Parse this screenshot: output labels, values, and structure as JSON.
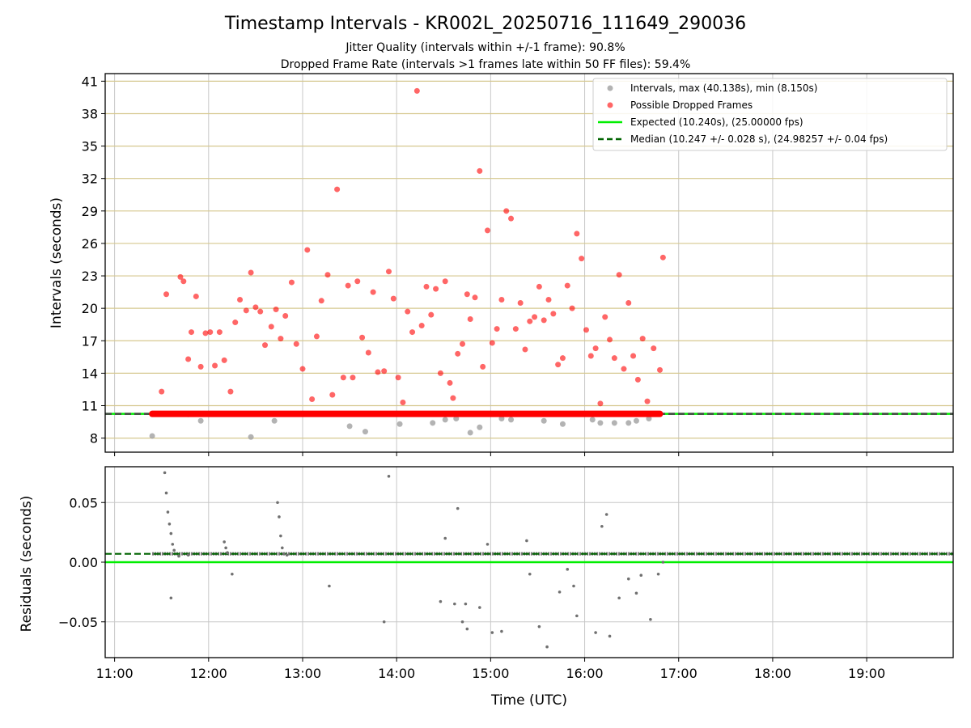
{
  "chart_data": [
    {
      "type": "scatter",
      "title": "Timestamp Intervals - KR002L_20250716_111649_290036",
      "subtitle_1": "Jitter Quality (intervals within +/-1 frame): 90.8%",
      "subtitle_2": "Dropped Frame Rate (intervals >1 frames late within 50 FF files): 59.4%",
      "xlabel": "",
      "ylabel": "Intervals (seconds)",
      "x_ticks": [
        "11:00",
        "12:00",
        "13:00",
        "14:00",
        "15:00",
        "16:00",
        "17:00",
        "18:00",
        "19:00"
      ],
      "y_ticks": [
        8,
        11,
        14,
        17,
        20,
        23,
        26,
        29,
        32,
        35,
        38,
        41
      ],
      "xlim_hours": [
        10.9,
        19.92
      ],
      "ylim": [
        6.7,
        41.7
      ],
      "grid": true,
      "legend_position": "top-right",
      "legend": {
        "intervals": "Intervals, max (40.138s), min (8.150s)",
        "dropped": "Possible Dropped Frames",
        "expected": "Expected (10.240s), (25.00000 fps)",
        "median": "Median (10.247 +/- 0.028 s), (24.98257 +/- 0.04 fps)"
      },
      "colors": {
        "intervals": "#a0a0a0",
        "dropped": "#ff0000",
        "expected": "#00ee00",
        "median": "#006400",
        "grid_h": "#d6c88f",
        "grid_v": "#c8c8c8"
      },
      "series": [
        {
          "name": "Possible Dropped Frames",
          "x": [
            "11:30",
            "11:33",
            "11:42",
            "11:44",
            "11:47",
            "11:49",
            "11:52",
            "11:55",
            "11:58",
            "12:01",
            "12:04",
            "12:07",
            "12:10",
            "12:14",
            "12:17",
            "12:20",
            "12:24",
            "12:27",
            "12:30",
            "12:33",
            "12:36",
            "12:40",
            "12:43",
            "12:46",
            "12:49",
            "12:53",
            "12:56",
            "13:00",
            "13:03",
            "13:06",
            "13:09",
            "13:12",
            "13:16",
            "13:19",
            "13:22",
            "13:26",
            "13:29",
            "13:32",
            "13:35",
            "13:38",
            "13:42",
            "13:45",
            "13:48",
            "13:52",
            "13:55",
            "13:58",
            "14:01",
            "14:04",
            "14:07",
            "14:10",
            "14:13",
            "14:16",
            "14:19",
            "14:22",
            "14:25",
            "14:28",
            "14:31",
            "14:34",
            "14:36",
            "14:39",
            "14:42",
            "14:45",
            "14:47",
            "14:50",
            "14:53",
            "14:55",
            "14:58",
            "15:01",
            "15:04",
            "15:07",
            "15:10",
            "15:13",
            "15:16",
            "15:19",
            "15:22",
            "15:25",
            "15:28",
            "15:31",
            "15:34",
            "15:37",
            "15:40",
            "15:43",
            "15:46",
            "15:49",
            "15:52",
            "15:55",
            "15:58",
            "16:01",
            "16:04",
            "16:07",
            "16:10",
            "16:13",
            "16:16",
            "16:19",
            "16:22",
            "16:25",
            "16:28",
            "16:31",
            "16:34",
            "16:37",
            "16:40",
            "16:44",
            "16:48",
            "16:50"
          ],
          "values": [
            12.3,
            21.3,
            22.9,
            22.5,
            15.3,
            17.8,
            21.1,
            14.6,
            17.7,
            17.8,
            14.7,
            17.8,
            15.2,
            12.3,
            18.7,
            20.8,
            19.8,
            23.3,
            20.1,
            19.7,
            16.6,
            18.3,
            19.9,
            17.2,
            19.3,
            22.4,
            16.7,
            14.4,
            25.4,
            11.6,
            17.4,
            20.7,
            23.1,
            12.0,
            31.0,
            13.6,
            22.1,
            13.6,
            22.5,
            17.3,
            15.9,
            21.5,
            14.1,
            14.2,
            23.4,
            20.9,
            13.6,
            11.3,
            19.7,
            17.8,
            40.1,
            18.4,
            22.0,
            19.4,
            21.8,
            14.0,
            22.5,
            13.1,
            11.7,
            15.8,
            16.7,
            21.3,
            19.0,
            21.0,
            32.7,
            14.6,
            27.2,
            16.8,
            18.1,
            20.8,
            29.0,
            28.3,
            18.1,
            20.5,
            16.2,
            18.8,
            19.2,
            22.0,
            18.9,
            20.8,
            19.5,
            14.8,
            15.4,
            22.1,
            20.0,
            26.9,
            24.6,
            18.0,
            15.6,
            16.3,
            11.2,
            19.2,
            17.1,
            15.4,
            23.1,
            14.4,
            20.5,
            15.6,
            13.4,
            17.2,
            11.4,
            16.3,
            14.3,
            24.7
          ]
        },
        {
          "name": "Intervals, max (40.138s), min (8.150s)",
          "x": [
            "11:24",
            "11:47",
            "11:55",
            "12:27",
            "12:42",
            "13:30",
            "13:40",
            "14:02",
            "14:23",
            "14:31",
            "14:38",
            "14:47",
            "14:53",
            "15:07",
            "15:13",
            "15:34",
            "15:46",
            "16:05",
            "16:10",
            "16:19",
            "16:28",
            "16:33",
            "16:41"
          ],
          "values": [
            8.2,
            10.2,
            9.6,
            8.1,
            9.6,
            9.1,
            8.6,
            9.3,
            9.4,
            9.7,
            9.8,
            8.5,
            9.0,
            9.8,
            9.7,
            9.6,
            9.3,
            9.7,
            9.4,
            9.4,
            9.4,
            9.6,
            9.8
          ]
        }
      ],
      "band": {
        "name": "dense normal intervals (10.24 s)",
        "x_start": "11:24",
        "x_end": "16:48",
        "y": 10.24
      },
      "expected": 10.24,
      "median": 10.247
    },
    {
      "type": "scatter",
      "xlabel": "Time (UTC)",
      "ylabel": "Residuals (seconds)",
      "x_ticks": [
        "11:00",
        "12:00",
        "13:00",
        "14:00",
        "15:00",
        "16:00",
        "17:00",
        "18:00",
        "19:00"
      ],
      "y_ticks": [
        0.05,
        0.0,
        -0.05
      ],
      "y_tick_labels": [
        "0.05",
        "0.00",
        "−0.05"
      ],
      "xlim_hours": [
        10.9,
        19.92
      ],
      "ylim": [
        -0.08,
        0.08
      ],
      "grid": true,
      "residual_color": "#707070",
      "expected_residual": 0.0,
      "median_residual": 0.007,
      "series": [
        {
          "name": "Residuals",
          "x": [
            "11:32",
            "11:33",
            "11:34",
            "11:35",
            "11:36",
            "11:37",
            "11:38",
            "11:41",
            "11:47",
            "12:10",
            "12:11",
            "12:12",
            "12:44",
            "12:45",
            "12:46",
            "12:47",
            "12:48",
            "12:50",
            "13:55",
            "14:31",
            "14:37",
            "14:39",
            "14:42",
            "14:45",
            "14:53",
            "14:58",
            "15:01",
            "15:07",
            "15:23",
            "15:31",
            "15:36",
            "15:44",
            "15:49",
            "15:53",
            "16:07",
            "16:11",
            "16:14",
            "16:16",
            "16:22",
            "16:28",
            "16:33",
            "16:36",
            "16:42",
            "16:47",
            "16:50",
            "11:36",
            "12:15",
            "13:17",
            "13:52",
            "14:28",
            "14:44",
            "15:25",
            "15:55"
          ],
          "values": [
            0.075,
            0.058,
            0.042,
            0.032,
            0.024,
            0.015,
            0.01,
            0.005,
            0.006,
            0.017,
            0.012,
            0.008,
            0.05,
            0.038,
            0.022,
            0.012,
            0.007,
            0.006,
            0.072,
            0.02,
            -0.035,
            0.045,
            -0.05,
            -0.056,
            -0.038,
            0.015,
            -0.059,
            -0.058,
            0.018,
            -0.054,
            -0.071,
            -0.025,
            -0.006,
            -0.02,
            -0.059,
            0.03,
            0.04,
            -0.062,
            -0.03,
            -0.014,
            -0.026,
            -0.011,
            -0.048,
            -0.01,
            0.0,
            -0.03,
            -0.01,
            -0.02,
            -0.05,
            -0.033,
            -0.035,
            -0.01,
            -0.045
          ]
        }
      ],
      "baseline_residual": 0.007
    }
  ]
}
